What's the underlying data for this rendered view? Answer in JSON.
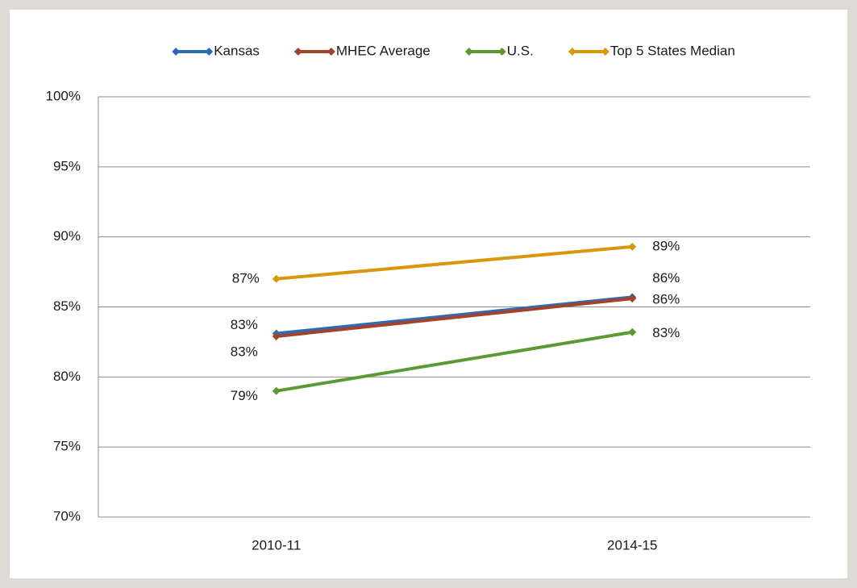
{
  "chart_data": {
    "type": "line",
    "categories": [
      "2010-11",
      "2014-15"
    ],
    "series": [
      {
        "name": "Kansas",
        "color": "#2e6bb5",
        "values": [
          83.1,
          85.7
        ],
        "value_labels": [
          "83%",
          "86%"
        ]
      },
      {
        "name": "MHEC Average",
        "color": "#a3432c",
        "values": [
          82.9,
          85.6
        ],
        "value_labels": [
          "83%",
          "86%"
        ]
      },
      {
        "name": "U.S.",
        "color": "#5b9a32",
        "values": [
          79.0,
          83.2
        ],
        "value_labels": [
          "79%",
          "83%"
        ]
      },
      {
        "name": "Top 5 States Median",
        "color": "#d8970c",
        "values": [
          87.0,
          89.3
        ],
        "value_labels": [
          "87%",
          "89%"
        ]
      }
    ],
    "ylim": [
      70,
      100
    ],
    "yticks": [
      {
        "value": 70,
        "label": "70%"
      },
      {
        "value": 75,
        "label": "75%"
      },
      {
        "value": 80,
        "label": "80%"
      },
      {
        "value": 85,
        "label": "85%"
      },
      {
        "value": 90,
        "label": "90%"
      },
      {
        "value": 95,
        "label": "95%"
      },
      {
        "value": 100,
        "label": "100%"
      }
    ],
    "grid": true,
    "legend": "top"
  }
}
